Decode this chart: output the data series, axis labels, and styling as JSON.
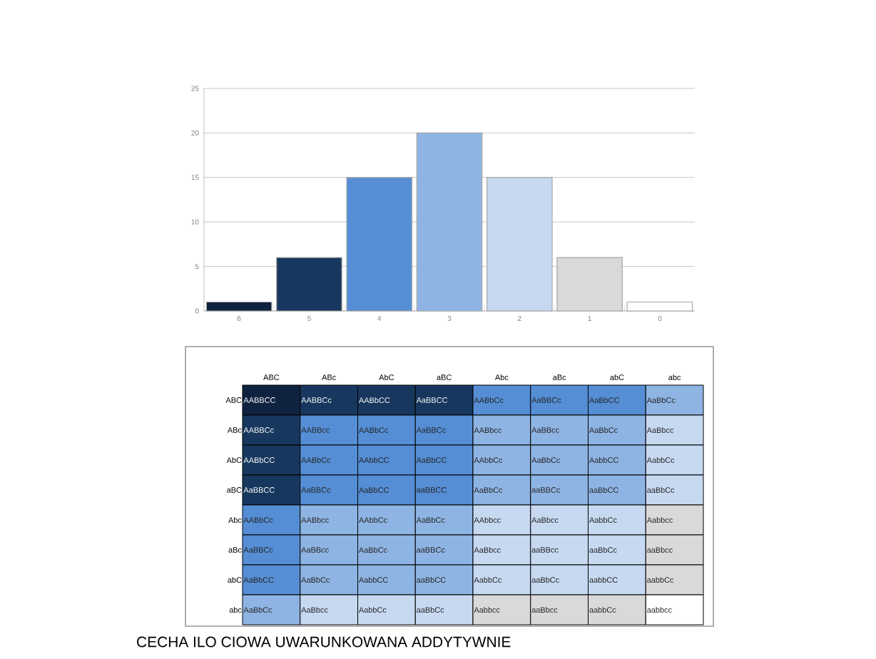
{
  "chart_data": [
    {
      "type": "bar",
      "categories": [
        "6",
        "5",
        "4",
        "3",
        "2",
        "1",
        "0"
      ],
      "values": [
        1,
        6,
        15,
        20,
        15,
        6,
        1
      ],
      "colors": [
        "#0f2340",
        "#17375e",
        "#558ed5",
        "#8eb4e3",
        "#c6d9f1",
        "#d9d9d9",
        "#ffffff"
      ],
      "ylim": [
        0,
        25
      ],
      "yticks": [
        0,
        5,
        10,
        15,
        20,
        25
      ],
      "grid": "y"
    },
    {
      "type": "other",
      "categories": [
        "ABC",
        "ABc",
        "AbC",
        "aBC",
        "Abc",
        "aBc",
        "abC",
        "abc"
      ],
      "y_categories": [
        "ABC",
        "ABc",
        "AbC",
        "aBC",
        "Abc",
        "aBc",
        "abC",
        "abc"
      ],
      "colors": [
        [
          "#0f2340",
          "#17375e",
          "#17375e",
          "#17375e",
          "#558ed5",
          "#558ed5",
          "#558ed5",
          "#8eb4e3"
        ],
        [
          "#17375e",
          "#558ed5",
          "#558ed5",
          "#558ed5",
          "#8eb4e3",
          "#8eb4e3",
          "#8eb4e3",
          "#c6d9f1"
        ],
        [
          "#17375e",
          "#558ed5",
          "#558ed5",
          "#558ed5",
          "#8eb4e3",
          "#8eb4e3",
          "#8eb4e3",
          "#c6d9f1"
        ],
        [
          "#17375e",
          "#558ed5",
          "#558ed5",
          "#558ed5",
          "#8eb4e3",
          "#8eb4e3",
          "#8eb4e3",
          "#c6d9f1"
        ],
        [
          "#558ed5",
          "#8eb4e3",
          "#8eb4e3",
          "#8eb4e3",
          "#c6d9f1",
          "#c6d9f1",
          "#c6d9f1",
          "#d9d9d9"
        ],
        [
          "#558ed5",
          "#8eb4e3",
          "#8eb4e3",
          "#8eb4e3",
          "#c6d9f1",
          "#c6d9f1",
          "#c6d9f1",
          "#d9d9d9"
        ],
        [
          "#558ed5",
          "#8eb4e3",
          "#8eb4e3",
          "#8eb4e3",
          "#c6d9f1",
          "#c6d9f1",
          "#c6d9f1",
          "#d9d9d9"
        ],
        [
          "#8eb4e3",
          "#c6d9f1",
          "#c6d9f1",
          "#c6d9f1",
          "#d9d9d9",
          "#d9d9d9",
          "#d9d9d9",
          "#ffffff"
        ]
      ],
      "cell_labels": [
        [
          "AABBCC",
          "AABBCc",
          "AABbCC",
          "AaBBCC",
          "AABbCc",
          "AaBBCc",
          "AaBbCC",
          "AaBbCc"
        ],
        [
          "AABBCc",
          "AABBcc",
          "AABbCc",
          "AaBBCc",
          "AABbcc",
          "AaBBcc",
          "AaBbCc",
          "AaBbcc"
        ],
        [
          "AABbCC",
          "AABbCc",
          "AAbbCC",
          "AaBbCC",
          "AAbbCc",
          "AaBbCc",
          "AabbCC",
          "AabbCc"
        ],
        [
          "AaBBCC",
          "AaBBCc",
          "AaBbCC",
          "aaBBCC",
          "AaBbCc",
          "aaBBCc",
          "aaBbCC",
          "aaBbCc"
        ],
        [
          "AABbCc",
          "AABbcc",
          "AAbbCc",
          "AaBbCc",
          "AAbbcc",
          "AaBbcc",
          "AabbCc",
          "Aabbcc"
        ],
        [
          "AaBBCc",
          "AaBBcc",
          "AaBbCc",
          "aaBBCc",
          "AaBbcc",
          "aaBBcc",
          "aaBbCc",
          "aaBbcc"
        ],
        [
          "AaBbCC",
          "AaBbCc",
          "AabbCC",
          "aaBbCC",
          "AabbCc",
          "aaBbCc",
          "aabbCC",
          "aabbCc"
        ],
        [
          "AaBbCc",
          "AaBbcc",
          "AabbCc",
          "aaBbCc",
          "Aabbcc",
          "aaBbcc",
          "aabbCc",
          "aabbcc"
        ]
      ],
      "annotations": [
        "CECHA ILO CIOWA UWARUNKOWANA ADDYTYWNIE"
      ]
    }
  ]
}
